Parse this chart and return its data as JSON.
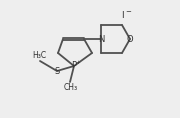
{
  "bg_color": "#eeeeee",
  "line_color": "#505050",
  "text_color": "#303030",
  "bond_lw": 1.3,
  "font_size": 5.5,
  "iodide_label": "I",
  "iodide_charge": "−",
  "phosphorus_label": "P",
  "phosphorus_charge": "+",
  "sulfur_label": "S",
  "nitrogen_label": "N",
  "oxygen_label": "O",
  "methyl1_label": "H₃C",
  "methyl2_label": "CH₃"
}
